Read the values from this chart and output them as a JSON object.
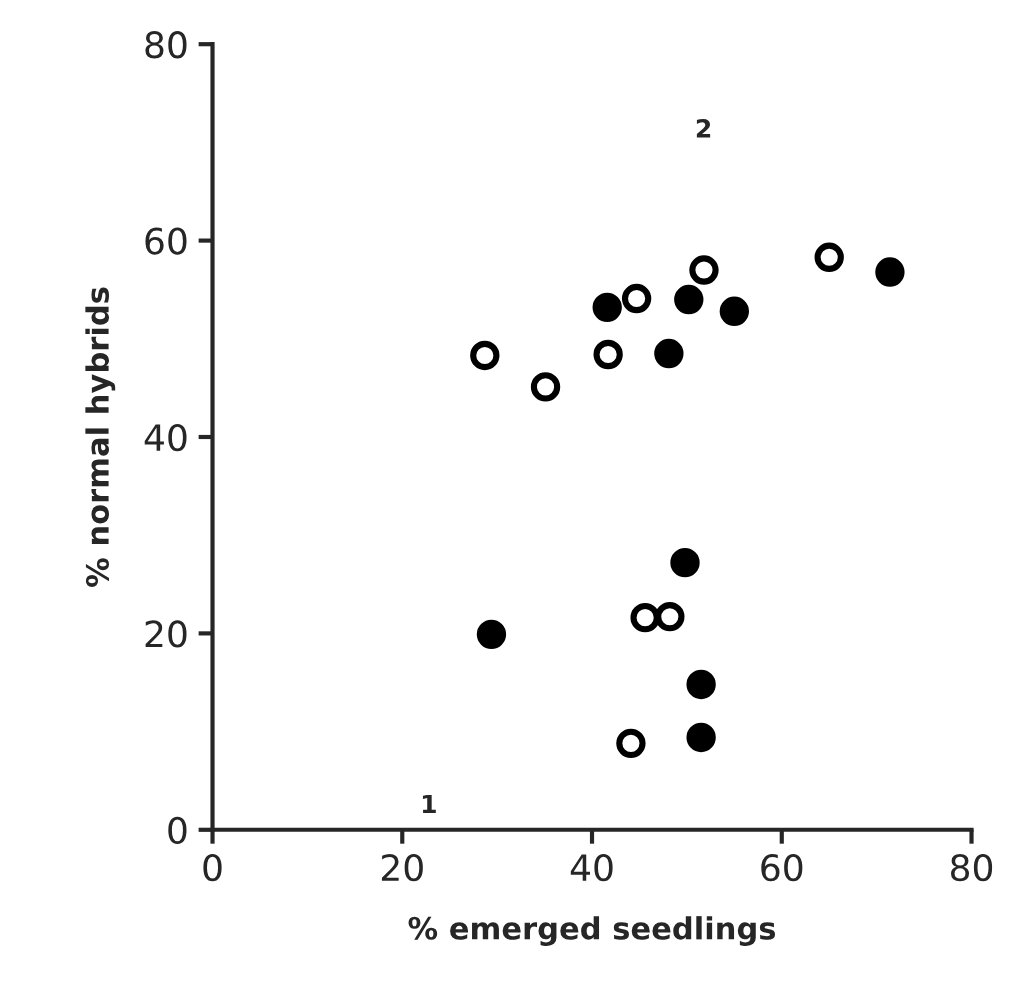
{
  "chart_data": {
    "type": "scatter",
    "xlabel": "% emerged seedlings",
    "ylabel": "% normal hybrids",
    "xlim": [
      0,
      80
    ],
    "ylim": [
      0,
      80
    ],
    "xticks": [
      0,
      20,
      40,
      60,
      80
    ],
    "yticks": [
      0,
      20,
      40,
      60,
      80
    ],
    "grid": false,
    "legend": false,
    "marker": "circle",
    "series": [
      {
        "color": "#000000",
        "x": [
          41.6,
          50.2,
          48.1,
          55.0,
          71.4,
          49.8,
          29.4,
          51.5,
          51.5
        ],
        "values": [
          53.2,
          54.0,
          48.5,
          52.8,
          56.8,
          27.2,
          19.9,
          14.8,
          9.4
        ]
      },
      {
        "color": "#ffffff",
        "x": [
          28.7,
          35.1,
          44.7,
          41.7,
          51.8,
          65.0,
          45.6,
          48.2,
          44.1
        ],
        "values": [
          48.3,
          45.1,
          54.1,
          48.4,
          57.0,
          58.3,
          21.6,
          21.7,
          8.8
        ]
      }
    ],
    "annotations": [
      "1",
      "2"
    ]
  }
}
